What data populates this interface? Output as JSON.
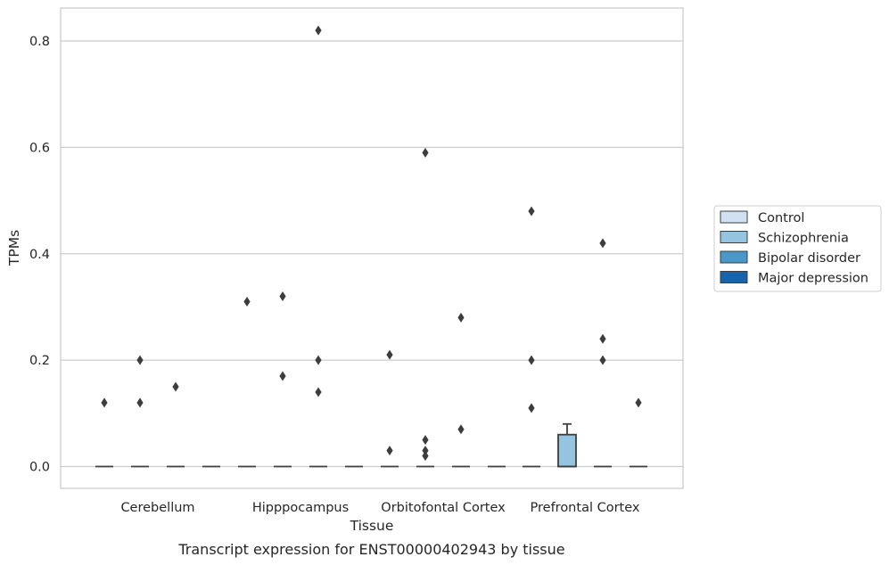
{
  "caption": "Transcript expression for ENST00000402943 by tissue",
  "chart_data": {
    "type": "box",
    "xlabel": "Tissue",
    "ylabel": "TPMs",
    "categories": [
      "Cerebellum",
      "Hipppocampus",
      "Orbitofontal Cortex",
      "Prefrontal Cortex"
    ],
    "ylim": [
      -0.04,
      0.86
    ],
    "yticks": [
      0.0,
      0.2,
      0.4,
      0.6,
      0.8
    ],
    "ytick_labels": [
      "0.0",
      "0.2",
      "0.4",
      "0.6",
      "0.8"
    ],
    "grid": true,
    "legend_placement": "center-right outside",
    "series": [
      {
        "name": "Control",
        "color": "#d0e1f2",
        "boxes": [
          {
            "q1": 0,
            "median": 0,
            "q3": 0,
            "whisker_low": 0,
            "whisker_high": 0,
            "outliers": [
              0.12
            ]
          },
          {
            "q1": 0,
            "median": 0,
            "q3": 0,
            "whisker_low": 0,
            "whisker_high": 0,
            "outliers": [
              0.31
            ]
          },
          {
            "q1": 0,
            "median": 0,
            "q3": 0,
            "whisker_low": 0,
            "whisker_high": 0,
            "outliers": [
              0.21,
              0.03
            ]
          },
          {
            "q1": 0,
            "median": 0,
            "q3": 0,
            "whisker_low": 0,
            "whisker_high": 0,
            "outliers": [
              0.48,
              0.2,
              0.11
            ]
          }
        ]
      },
      {
        "name": "Schizophrenia",
        "color": "#94c4df",
        "boxes": [
          {
            "q1": 0,
            "median": 0,
            "q3": 0,
            "whisker_low": 0,
            "whisker_high": 0,
            "outliers": [
              0.2,
              0.12
            ]
          },
          {
            "q1": 0,
            "median": 0,
            "q3": 0,
            "whisker_low": 0,
            "whisker_high": 0,
            "outliers": [
              0.32,
              0.17
            ]
          },
          {
            "q1": 0,
            "median": 0,
            "q3": 0,
            "whisker_low": 0,
            "whisker_high": 0,
            "outliers": [
              0.59,
              0.05,
              0.03,
              0.02
            ]
          },
          {
            "q1": 0,
            "median": 0,
            "q3": 0.06,
            "whisker_low": 0,
            "whisker_high": 0.08,
            "outliers": []
          }
        ]
      },
      {
        "name": "Bipolar disorder",
        "color": "#4a98c9",
        "boxes": [
          {
            "q1": 0,
            "median": 0,
            "q3": 0,
            "whisker_low": 0,
            "whisker_high": 0,
            "outliers": [
              0.15
            ]
          },
          {
            "q1": 0,
            "median": 0,
            "q3": 0,
            "whisker_low": 0,
            "whisker_high": 0,
            "outliers": [
              0.82,
              0.2,
              0.14
            ]
          },
          {
            "q1": 0,
            "median": 0,
            "q3": 0,
            "whisker_low": 0,
            "whisker_high": 0,
            "outliers": [
              0.28,
              0.07
            ]
          },
          {
            "q1": 0,
            "median": 0,
            "q3": 0,
            "whisker_low": 0,
            "whisker_high": 0,
            "outliers": [
              0.42,
              0.24,
              0.2
            ]
          }
        ]
      },
      {
        "name": "Major depression",
        "color": "#1764ab",
        "boxes": [
          {
            "q1": 0,
            "median": 0,
            "q3": 0,
            "whisker_low": 0,
            "whisker_high": 0,
            "outliers": []
          },
          {
            "q1": 0,
            "median": 0,
            "q3": 0,
            "whisker_low": 0,
            "whisker_high": 0,
            "outliers": []
          },
          {
            "q1": 0,
            "median": 0,
            "q3": 0,
            "whisker_low": 0,
            "whisker_high": 0,
            "outliers": []
          },
          {
            "q1": 0,
            "median": 0,
            "q3": 0,
            "whisker_low": 0,
            "whisker_high": 0,
            "outliers": [
              0.12
            ]
          }
        ]
      }
    ]
  }
}
